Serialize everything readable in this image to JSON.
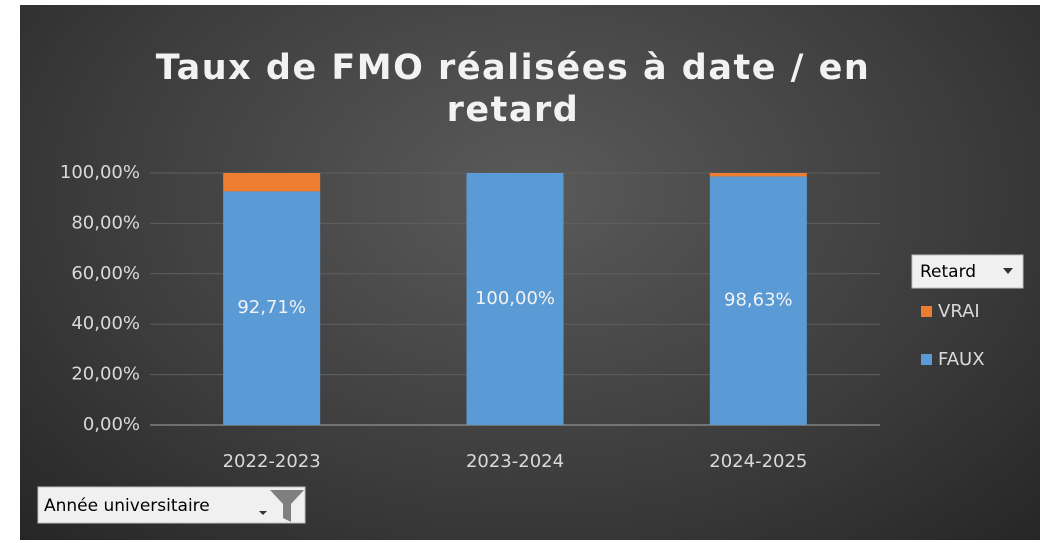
{
  "chart_data": {
    "type": "stacked_bar",
    "title": "Taux de FMO réalisées à date / en retard",
    "categories": [
      "2022-2023",
      "2023-2024",
      "2024-2025"
    ],
    "series": [
      {
        "name": "FAUX",
        "color": "#5b9bd5",
        "values": [
          92.71,
          100,
          98.63
        ],
        "value_labels": [
          "92,71%",
          "100,00%",
          "98,63%"
        ]
      },
      {
        "name": "VRAI",
        "color": "#ed7d31",
        "values": [
          7.29,
          0,
          1.37
        ]
      }
    ],
    "ylim": [
      0,
      100
    ],
    "yticks": [
      {
        "value": 0,
        "label": "0,00%"
      },
      {
        "value": 20,
        "label": "20,00%"
      },
      {
        "value": 40,
        "label": "40,00%"
      },
      {
        "value": 60,
        "label": "60,00%"
      },
      {
        "value": 80,
        "label": "80,00%"
      },
      {
        "value": 100,
        "label": "100,00%"
      }
    ],
    "grid": true,
    "legend_title": "Retard",
    "legend_position": "right",
    "axis_field": "Année universitaire"
  }
}
